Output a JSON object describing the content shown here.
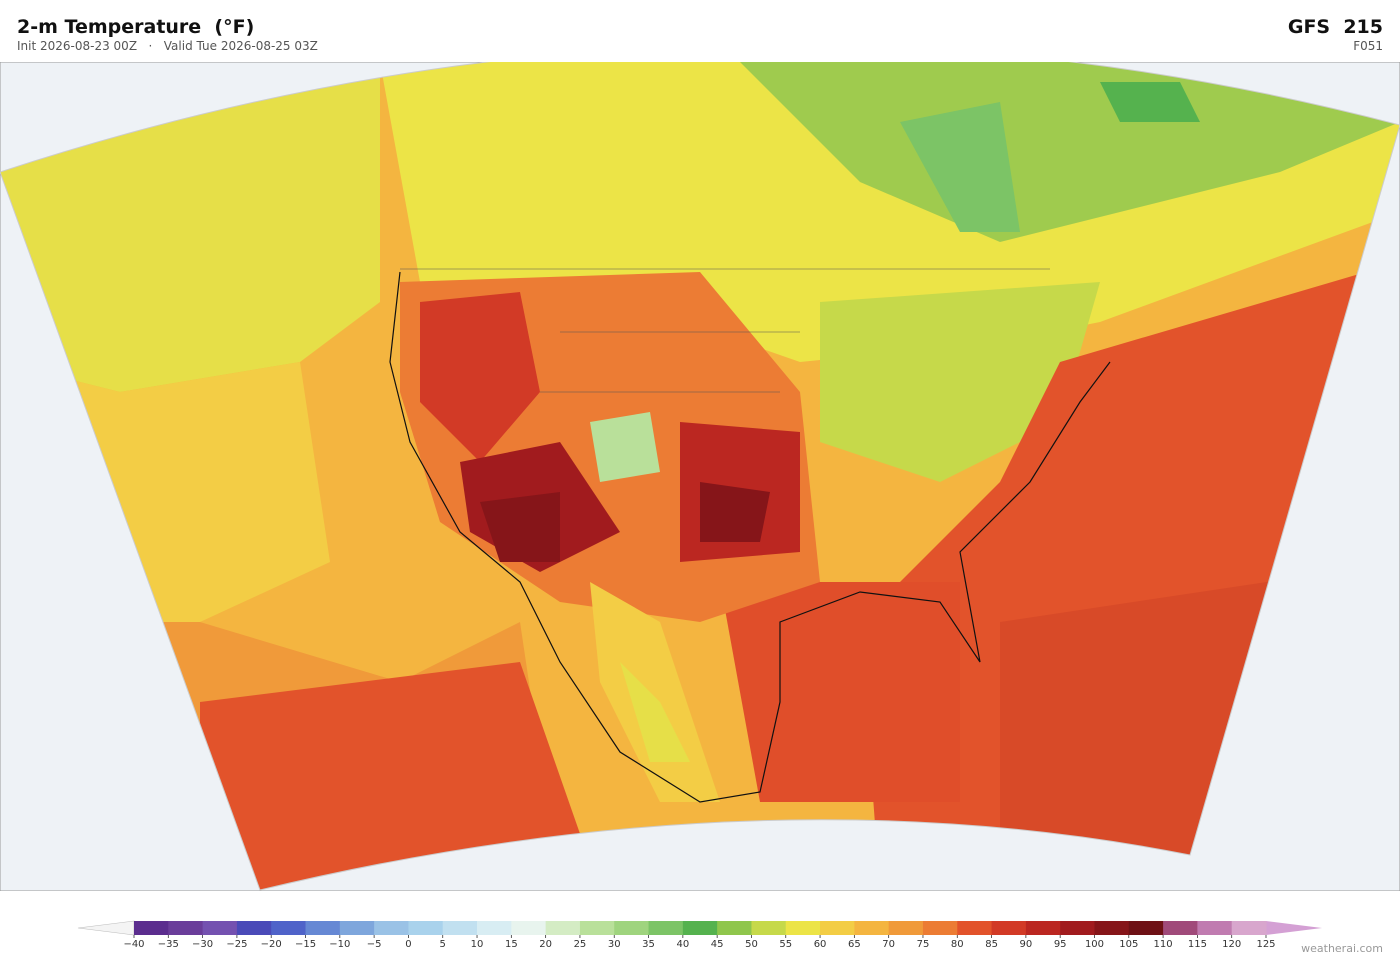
{
  "header": {
    "title": "2-m Temperature  (°F)",
    "init": "Init 2026-08-23 00Z",
    "separator": "·",
    "valid": "Valid Tue 2026-08-25 03Z",
    "model": "GFS  215",
    "forecast_hour": "F051"
  },
  "colorbar": {
    "ticks": [
      {
        "value": -40,
        "label": "−40"
      },
      {
        "value": -35,
        "label": "−35"
      },
      {
        "value": -30,
        "label": "−30"
      },
      {
        "value": -25,
        "label": "−25"
      },
      {
        "value": -20,
        "label": "−20"
      },
      {
        "value": -15,
        "label": "−15"
      },
      {
        "value": -10,
        "label": "−10"
      },
      {
        "value": -5,
        "label": "−5"
      },
      0,
      5,
      10,
      15,
      20,
      25,
      30,
      35,
      40,
      45,
      50,
      55,
      60,
      65,
      70,
      75,
      80,
      85,
      90,
      95,
      100,
      105,
      110,
      115,
      120,
      125
    ],
    "colors": [
      "#5b2d8e",
      "#6a3d9a",
      "#7451b0",
      "#4a4ab8",
      "#4f63c9",
      "#6688d4",
      "#7ea6dc",
      "#9ac2e6",
      "#a9d2ec",
      "#c1e0f0",
      "#d8edf3",
      "#e8f4ee",
      "#d4ecc4",
      "#b9e09a",
      "#9fd47e",
      "#7cc466",
      "#55b24e",
      "#8fc64c",
      "#c6d94a",
      "#ece447",
      "#f3cd45",
      "#f4b540",
      "#f09a3a",
      "#ec7c34",
      "#e2532b",
      "#d23a26",
      "#bb2721",
      "#a11b1e",
      "#861519",
      "#6e1115",
      "#a04a7a",
      "#c07bb0",
      "#d8a6cd"
    ],
    "under_color": "#f4f4f4",
    "over_color": "#d4a0d4"
  },
  "watermark": "weatherai.com"
}
